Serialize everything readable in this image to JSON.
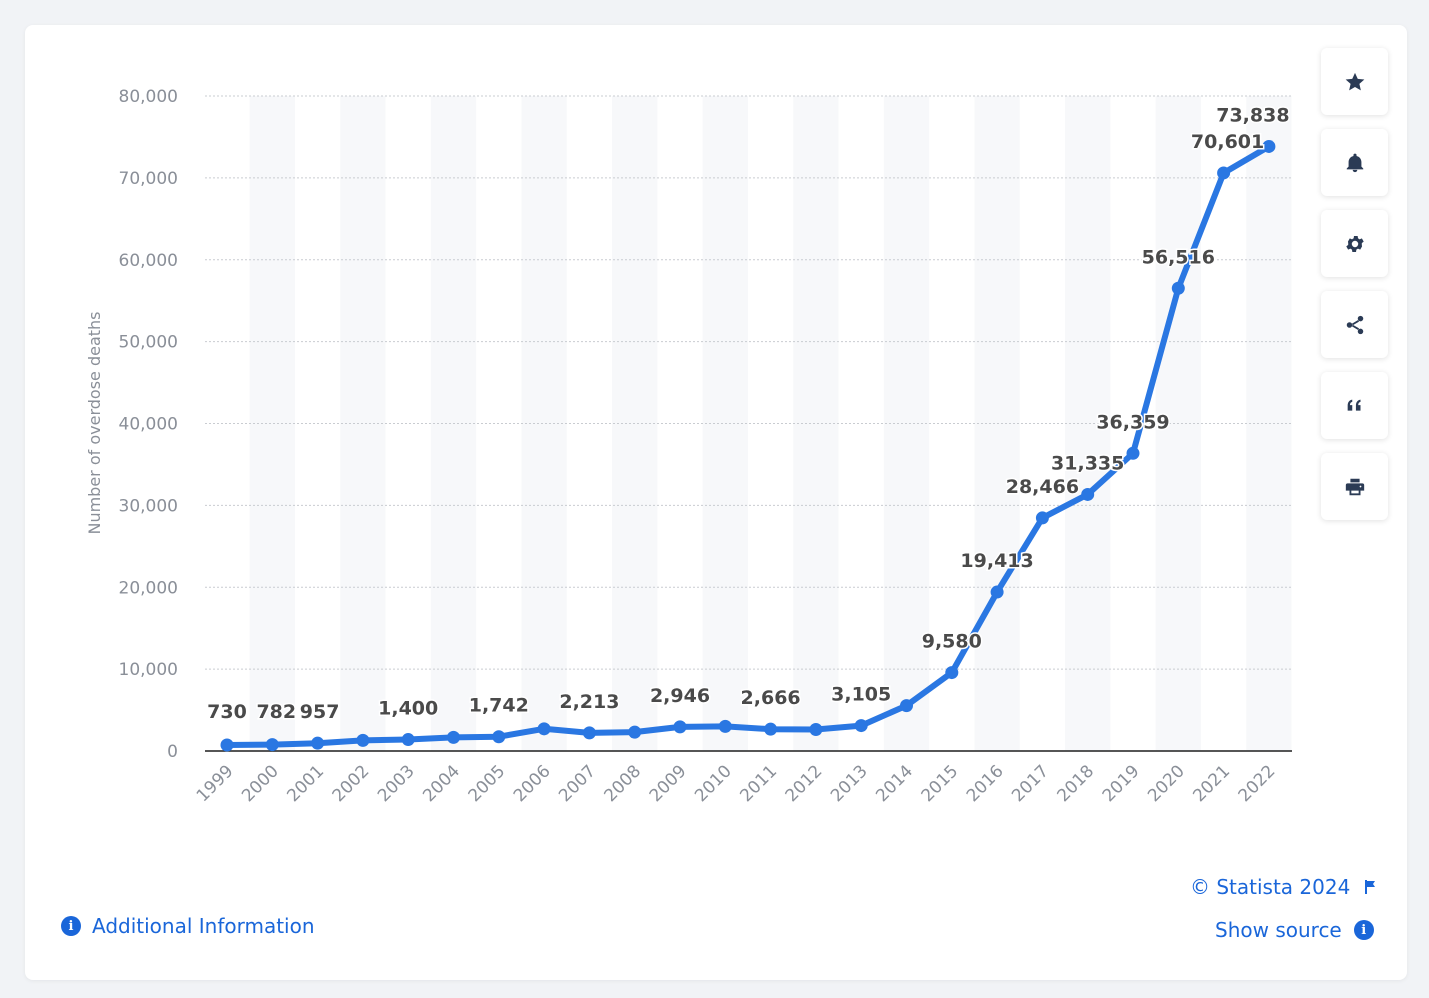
{
  "chart_data": {
    "type": "line",
    "ylabel": "Number of overdose deaths",
    "ylim": [
      0,
      80000
    ],
    "yticks": [
      0,
      10000,
      20000,
      30000,
      40000,
      50000,
      60000,
      70000,
      80000
    ],
    "ytick_labels": [
      "0",
      "10,000",
      "20,000",
      "30,000",
      "40,000",
      "50,000",
      "60,000",
      "70,000",
      "80,000"
    ],
    "grid": true,
    "categories": [
      "1999",
      "2000",
      "2001",
      "2002",
      "2003",
      "2004",
      "2005",
      "2006",
      "2007",
      "2008",
      "2009",
      "2010",
      "2011",
      "2012",
      "2013",
      "2014",
      "2015",
      "2016",
      "2017",
      "2018",
      "2019",
      "2020",
      "2021",
      "2022"
    ],
    "values": [
      730,
      782,
      957,
      1295,
      1400,
      1664,
      1742,
      2707,
      2213,
      2306,
      2946,
      3007,
      2666,
      2628,
      3105,
      5544,
      9580,
      19413,
      28466,
      31335,
      36359,
      56516,
      70601,
      73838
    ],
    "data_labels": [
      {
        "index": 0,
        "text": "730"
      },
      {
        "index": 1,
        "text": "782"
      },
      {
        "index": 2,
        "text": "957"
      },
      {
        "index": 4,
        "text": "1,400"
      },
      {
        "index": 6,
        "text": "1,742"
      },
      {
        "index": 8,
        "text": "2,213"
      },
      {
        "index": 10,
        "text": "2,946"
      },
      {
        "index": 12,
        "text": "2,666"
      },
      {
        "index": 14,
        "text": "3,105"
      },
      {
        "index": 16,
        "text": "9,580"
      },
      {
        "index": 17,
        "text": "19,413"
      },
      {
        "index": 18,
        "text": "28,466"
      },
      {
        "index": 19,
        "text": "31,335"
      },
      {
        "index": 20,
        "text": "36,359"
      },
      {
        "index": 21,
        "text": "56,516"
      },
      {
        "index": 22,
        "text": "70,601"
      },
      {
        "index": 23,
        "text": "73,838"
      }
    ],
    "colors": {
      "line": "#2a77e2",
      "label": "#4a4a4a",
      "axis_text": "#8a8f98",
      "grid": "#c9ccd1",
      "band": "#f7f8fa"
    }
  },
  "toolbar": {
    "buttons": [
      {
        "icon": "star-icon",
        "name": "favorite"
      },
      {
        "icon": "bell-icon",
        "name": "notifications"
      },
      {
        "icon": "gear-icon",
        "name": "settings"
      },
      {
        "icon": "share-icon",
        "name": "share"
      },
      {
        "icon": "quote-icon",
        "name": "cite"
      },
      {
        "icon": "print-icon",
        "name": "print"
      }
    ]
  },
  "footer": {
    "copyright": "© Statista 2024",
    "additional_info": "Additional Information",
    "show_source": "Show source"
  }
}
